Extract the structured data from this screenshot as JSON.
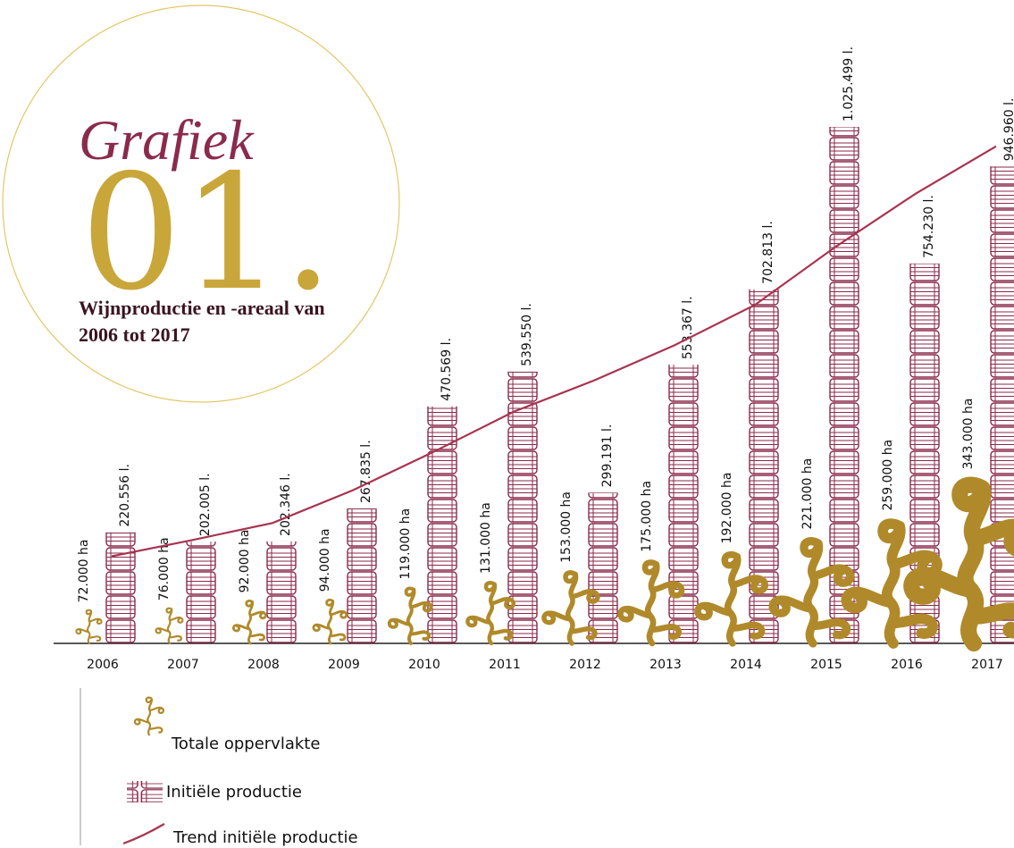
{
  "chart_data": {
    "type": "pictograph",
    "title": "Grafiek",
    "number": "01.",
    "subtitle": [
      "Wijnproductie en -areaal van",
      "2006 tot 2017"
    ],
    "categories": [
      "2006",
      "2007",
      "2008",
      "2009",
      "2010",
      "2011",
      "2012",
      "2013",
      "2014",
      "2015",
      "2016",
      "2017"
    ],
    "ylim": [
      0,
      1100000
    ],
    "series": [
      {
        "name": "Totale oppervlakte",
        "color": "#b08a2a",
        "icon": "vine",
        "values": [
          72000,
          76000,
          92000,
          94000,
          119000,
          131000,
          153000,
          175000,
          192000,
          221000,
          259000,
          343000
        ],
        "value_labels": [
          "72.000 ha",
          "76.000 ha",
          "92.000 ha",
          "94.000 ha",
          "119.000 ha",
          "131.000 ha",
          "153.000 ha",
          "175.000 ha",
          "192.000 ha",
          "221.000 ha",
          "259.000 ha",
          "343.000 ha"
        ]
      },
      {
        "name": "Initiële productie",
        "color": "#8b2a4a",
        "icon": "barrel",
        "values": [
          220556,
          202005,
          202346,
          267835,
          470569,
          539550,
          299191,
          553367,
          702813,
          1025499,
          754230,
          946960
        ],
        "value_labels": [
          "220.556 l.",
          "202.005 l.",
          "202.346 l.",
          "267.835 l.",
          "470.569 l.",
          "539.550 l.",
          "299.191 l.",
          "553.367 l.",
          "702.813 l.",
          "1.025.499 l.",
          "754.230 l.",
          "946.960 l."
        ]
      },
      {
        "name": "Trend initiële productie",
        "color": "#a8334f",
        "icon": "line",
        "values": [
          173000,
          205000,
          239000,
          304000,
          380000,
          460000,
          522000,
          592000,
          672000,
          787000,
          893000,
          987000
        ]
      }
    ]
  }
}
